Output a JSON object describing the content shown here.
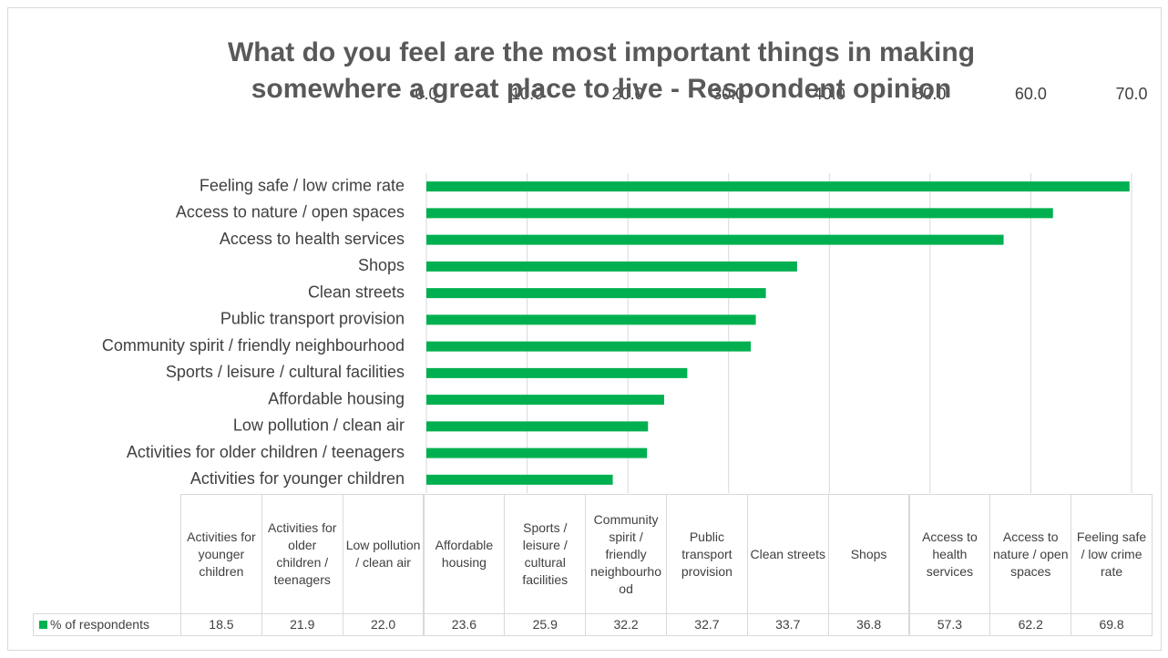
{
  "chart_data": {
    "type": "bar",
    "orientation": "horizontal",
    "title": "What do you feel are the most important things in making somewhere a great place to live - Respondent opinion",
    "categories": [
      "Activities for younger children",
      "Activities for older children / teenagers",
      "Low pollution / clean air",
      "Affordable housing",
      "Sports / leisure / cultural facilities",
      "Community spirit / friendly neighbourhood",
      "Public transport provision",
      "Clean streets",
      "Shops",
      "Access to health services",
      "Access to nature / open spaces",
      "Feeling safe / low crime rate"
    ],
    "series": [
      {
        "name": "% of respondents",
        "color": "#00b050",
        "values": [
          18.5,
          21.9,
          22.0,
          23.6,
          25.9,
          32.2,
          32.7,
          33.7,
          36.8,
          57.3,
          62.2,
          69.8
        ],
        "value_labels": [
          "18.5",
          "21.9",
          "22.0",
          "23.6",
          "25.9",
          "32.2",
          "32.7",
          "33.7",
          "36.8",
          "57.3",
          "62.2",
          "69.8"
        ]
      }
    ],
    "xlim": [
      0,
      70
    ],
    "xticks": [
      {
        "value": 0,
        "label": "0.0"
      },
      {
        "value": 10,
        "label": "10.0"
      },
      {
        "value": 20,
        "label": "20.0"
      },
      {
        "value": 30,
        "label": "30.0"
      },
      {
        "value": 40,
        "label": "40.0"
      },
      {
        "value": 50,
        "label": "50.0"
      },
      {
        "value": 60,
        "label": "60.0"
      },
      {
        "value": 70,
        "label": "70.0"
      }
    ],
    "grid": true,
    "data_table": true
  }
}
